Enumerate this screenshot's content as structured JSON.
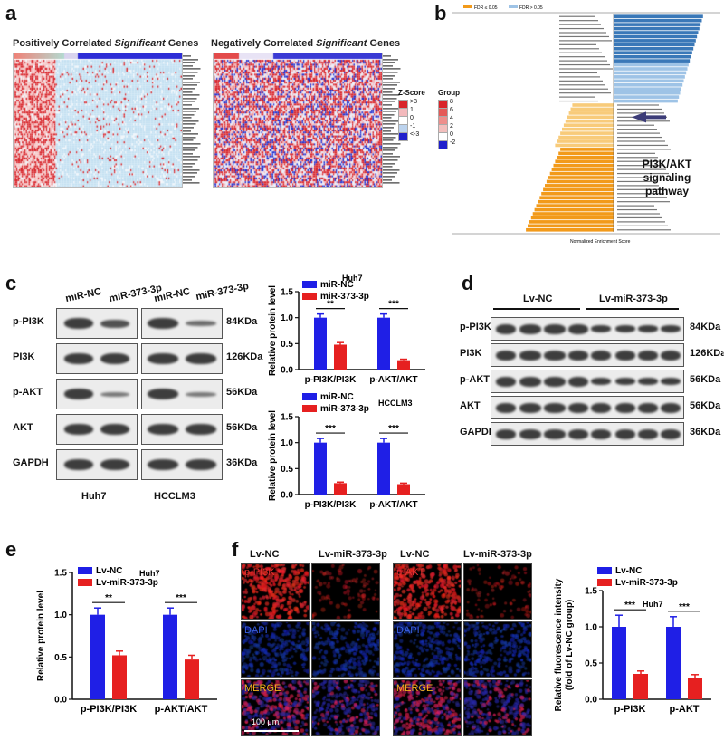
{
  "panels": {
    "a": "a",
    "b": "b",
    "c": "c",
    "d": "d",
    "e": "e",
    "f": "f"
  },
  "panel_a": {
    "title_pos_prefix": "Positively Correlated ",
    "title_pos_italic": "Significant",
    "title_pos_suffix": " Genes",
    "title_neg_prefix": "Negatively Correlated ",
    "title_neg_italic": "Significant",
    "title_neg_suffix": " Genes",
    "zscore_title": "Z-Score",
    "zscore_ticks": [
      ">3",
      "1",
      "0",
      "-1",
      "<-3"
    ],
    "group_title": "Group",
    "group_ticks": [
      "8",
      "6",
      "4",
      "2",
      "0",
      "-2"
    ],
    "colors": {
      "red": "#d9242a",
      "blue": "#1f1fcc",
      "light": "#cfe6f5",
      "white": "#ffffff"
    }
  },
  "panel_b": {
    "legend": [
      "FDR ≤ 0.05",
      "FDR > 0.05"
    ],
    "annotation": "PI3K/AKT\nsignaling\npathway",
    "annotation_lines": [
      "PI3K/AKT",
      "signaling",
      "pathway"
    ],
    "xlabel": "Normalized Enrichment Score",
    "colors": {
      "dark_blue": "#3a78b8",
      "light_blue": "#9ec3e6",
      "light_orange": "#f8cb7a",
      "orange": "#f29a1a",
      "arrow": "#3c3c78"
    }
  },
  "panel_c": {
    "lanes": [
      "miR-NC",
      "miR-373-3p",
      "miR-NC",
      "miR-373-3p"
    ],
    "rows": [
      "p-PI3K",
      "PI3K",
      "p-AKT",
      "AKT",
      "GAPDH"
    ],
    "kda": [
      "84KDa",
      "126KDa",
      "56KDa",
      "56KDa",
      "36KDa"
    ],
    "cell_lines": [
      "Huh7",
      "HCCLM3"
    ]
  },
  "panel_d": {
    "groups": [
      "Lv-NC",
      "Lv-miR-373-3p"
    ],
    "rows": [
      "p-PI3K",
      "PI3K",
      "p-AKT",
      "AKT",
      "GAPDH"
    ],
    "kda": [
      "84KDa",
      "126KDa",
      "56KDa",
      "56KDa",
      "36KDa"
    ]
  },
  "panel_f": {
    "headers": [
      "Lv-NC",
      "Lv-miR-373-3p",
      "Lv-NC",
      "Lv-miR-373-3p"
    ],
    "channels_left": [
      "p-PI3K",
      "DAPI",
      "MERGE"
    ],
    "channels_right": [
      "p-AKT",
      "DAPI",
      "MERGE"
    ],
    "scale_bar": "100 μm"
  },
  "chart_data": [
    {
      "id": "c-huh7",
      "type": "bar",
      "title": "Huh7",
      "categories": [
        "p-PI3K/PI3K",
        "p-AKT/AKT"
      ],
      "series": [
        {
          "name": "miR-NC",
          "values": [
            1.0,
            1.0
          ],
          "err": [
            0.07,
            0.07
          ],
          "color": "#1f1fe6"
        },
        {
          "name": "miR-373-3p",
          "values": [
            0.48,
            0.18
          ],
          "err": [
            0.04,
            0.02
          ],
          "color": "#e62020"
        }
      ],
      "ylabel": "Relative protein level",
      "ylim": [
        0,
        1.5
      ],
      "yticks": [
        "0.0",
        "0.5",
        "1.0",
        "1.5"
      ],
      "significance": [
        "**",
        "***"
      ]
    },
    {
      "id": "c-hcclm3",
      "type": "bar",
      "title": "HCCLM3",
      "categories": [
        "p-PI3K/PI3K",
        "p-AKT/AKT"
      ],
      "series": [
        {
          "name": "miR-NC",
          "values": [
            1.0,
            1.0
          ],
          "err": [
            0.08,
            0.08
          ],
          "color": "#1f1fe6"
        },
        {
          "name": "miR-373-3p",
          "values": [
            0.22,
            0.2
          ],
          "err": [
            0.02,
            0.02
          ],
          "color": "#e62020"
        }
      ],
      "ylabel": "Relative protein level",
      "ylim": [
        0,
        1.5
      ],
      "yticks": [
        "0.0",
        "0.5",
        "1.0",
        "1.5"
      ],
      "significance": [
        "***",
        "***"
      ]
    },
    {
      "id": "e-huh7",
      "type": "bar",
      "title": "Huh7",
      "categories": [
        "p-PI3K/PI3K",
        "p-AKT/AKT"
      ],
      "series": [
        {
          "name": "Lv-NC",
          "values": [
            1.0,
            1.0
          ],
          "err": [
            0.08,
            0.08
          ],
          "color": "#1f1fe6"
        },
        {
          "name": "Lv-miR-373-3p",
          "values": [
            0.52,
            0.47
          ],
          "err": [
            0.05,
            0.05
          ],
          "color": "#e62020"
        }
      ],
      "ylabel": "Relative protein level",
      "ylim": [
        0,
        1.5
      ],
      "yticks": [
        "0.0",
        "0.5",
        "1.0",
        "1.5"
      ],
      "significance": [
        "**",
        "***"
      ]
    },
    {
      "id": "f-huh7",
      "type": "bar",
      "title": "Huh7",
      "categories": [
        "p-PI3K",
        "p-AKT"
      ],
      "series": [
        {
          "name": "Lv-NC",
          "values": [
            1.0,
            1.0
          ],
          "err": [
            0.16,
            0.14
          ],
          "color": "#1f1fe6"
        },
        {
          "name": "Lv-miR-373-3p",
          "values": [
            0.35,
            0.3
          ],
          "err": [
            0.04,
            0.04
          ],
          "color": "#e62020"
        }
      ],
      "ylabel": "Relative fluorescence intensity\n(fold of Lv-NC group)",
      "ylabel_lines": [
        "Relative fluorescence intensity",
        "(fold of Lv-NC group)"
      ],
      "ylim": [
        0,
        1.5
      ],
      "yticks": [
        "0.0",
        "0.5",
        "1.0",
        "1.5"
      ],
      "significance": [
        "***",
        "***"
      ]
    }
  ]
}
